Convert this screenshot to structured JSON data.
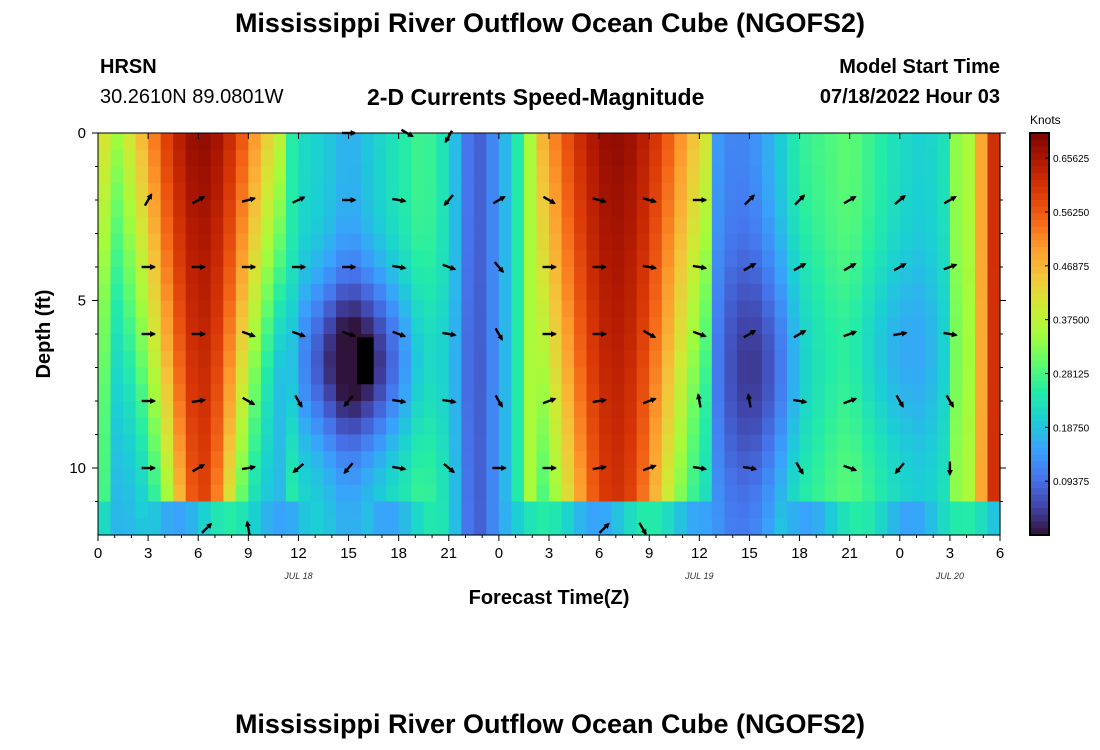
{
  "header": {
    "title": "Mississippi River Outflow Ocean Cube (NGOFS2)",
    "station_id": "HRSN",
    "station_coords": "30.2610N  89.0801W",
    "subtitle": "2-D Currents Speed-Magnitude",
    "model_label": "Model Start Time",
    "model_time": "07/18/2022 Hour 03"
  },
  "second_title": "Mississippi River Outflow Ocean Cube (NGOFS2)",
  "colors": {
    "scale": [
      "#30123b",
      "#4145ab",
      "#4675ed",
      "#39a2fc",
      "#1bcfd4",
      "#24eca6",
      "#61fc6c",
      "#a4fc3b",
      "#d1e834",
      "#f3c63a",
      "#fe9b2d",
      "#f36315",
      "#d93806",
      "#b11901",
      "#7a0402"
    ],
    "arrow": "#000000"
  },
  "chart_data": {
    "type": "heatmap",
    "title": "2-D Currents Speed-Magnitude",
    "xlabel": "Forecast Time(Z)",
    "ylabel": "Depth (ft)",
    "xlim": [
      0,
      54
    ],
    "ylim": [
      12,
      0
    ],
    "x_ticks": [
      0,
      3,
      6,
      9,
      12,
      15,
      18,
      21,
      24,
      27,
      30,
      33,
      36,
      39,
      42,
      45,
      48,
      51,
      54
    ],
    "x_tick_labels": [
      "0",
      "3",
      "6",
      "9",
      "12",
      "15",
      "18",
      "21",
      "0",
      "3",
      "6",
      "9",
      "12",
      "15",
      "18",
      "21",
      "0",
      "3",
      "6"
    ],
    "y_ticks": [
      0,
      5,
      10
    ],
    "y_tick_labels": [
      "0",
      "5",
      "10"
    ],
    "date_labels": [
      {
        "x": 12,
        "text": "JUL 18"
      },
      {
        "x": 36,
        "text": "JUL 19"
      },
      {
        "x": 51,
        "text": "JUL 20"
      }
    ],
    "colorbar": {
      "label": "Knots",
      "range": [
        0,
        0.7
      ],
      "ticks": [
        0.65625,
        0.5625,
        0.46875,
        0.375,
        0.28125,
        0.1875,
        0.09375
      ],
      "tick_labels": [
        "0.65625",
        "0.56250",
        "0.46875",
        "0.37500",
        "0.28125",
        "0.18750",
        "0.09375"
      ]
    },
    "depth_levels_ft": [
      0,
      1,
      2,
      3,
      4,
      5,
      6,
      7,
      8,
      9,
      10,
      11,
      12
    ],
    "hour_nodes": [
      0,
      1.5,
      3,
      4.5,
      6,
      7.5,
      9,
      10.5,
      12,
      13.5,
      15,
      16.5,
      18,
      19.5,
      21,
      22.5,
      24,
      25.5,
      27,
      28.5,
      30,
      31.5,
      33,
      34.5,
      36,
      37.5,
      39,
      40.5,
      42,
      43.5,
      45,
      46.5,
      48,
      49.5,
      51,
      52.5,
      54
    ],
    "surface_speed_knots": [
      0.36,
      0.52,
      0.62,
      0.66,
      0.68,
      0.66,
      0.56,
      0.34,
      0.22,
      0.2,
      0.16,
      0.2,
      0.24,
      0.28,
      0.22,
      0.06,
      0.14,
      0.28,
      0.58,
      0.66,
      0.68,
      0.67,
      0.64,
      0.46,
      0.2,
      0.12,
      0.12,
      0.18,
      0.26,
      0.28,
      0.3,
      0.26,
      0.22,
      0.2,
      0.24,
      0.62,
      0.66
    ],
    "deep_dark_core": {
      "x_hours": [
        15.5,
        16.5
      ],
      "depth_ft": [
        6.1,
        7.5
      ],
      "speed_knots": 0.0
    },
    "arrow_rows_depth_ft": [
      2,
      4,
      6,
      8,
      10
    ],
    "arrow_columns_hours": [
      3,
      6,
      9,
      12,
      15,
      18,
      21,
      24,
      27,
      30,
      33,
      36,
      39,
      42,
      45,
      48,
      51
    ],
    "arrow_directions_deg": [
      [
        60,
        30,
        15,
        25,
        0,
        -10,
        -130,
        30,
        -30,
        -15,
        -15,
        0,
        45,
        45,
        30,
        40,
        30
      ],
      [
        0,
        0,
        0,
        0,
        0,
        -10,
        -20,
        -50,
        0,
        0,
        -10,
        -10,
        30,
        30,
        30,
        30,
        20
      ],
      [
        0,
        0,
        -20,
        -20,
        -20,
        -20,
        -10,
        -60,
        0,
        0,
        -30,
        -20,
        30,
        30,
        20,
        10,
        -10
      ],
      [
        0,
        10,
        -30,
        -60,
        -130,
        -10,
        -10,
        -60,
        20,
        10,
        20,
        100,
        100,
        -10,
        20,
        -60,
        -60
      ],
      [
        0,
        30,
        10,
        -140,
        -130,
        -10,
        -40,
        0,
        0,
        10,
        20,
        -10,
        -10,
        -60,
        -20,
        -130,
        -90
      ]
    ],
    "bottom_arrows": [
      {
        "x": 6.5,
        "depth": 11.8,
        "deg": 45
      },
      {
        "x": 9.0,
        "depth": 11.8,
        "deg": 100
      },
      {
        "x": 30.3,
        "depth": 11.8,
        "deg": 45
      },
      {
        "x": 32.6,
        "depth": 11.8,
        "deg": -60
      }
    ],
    "top_arrows": [
      {
        "x": 15.0,
        "depth": 0.0,
        "deg": 0
      },
      {
        "x": 18.5,
        "depth": 0.0,
        "deg": -30
      },
      {
        "x": 21.0,
        "depth": 0.1,
        "deg": -120
      }
    ]
  }
}
